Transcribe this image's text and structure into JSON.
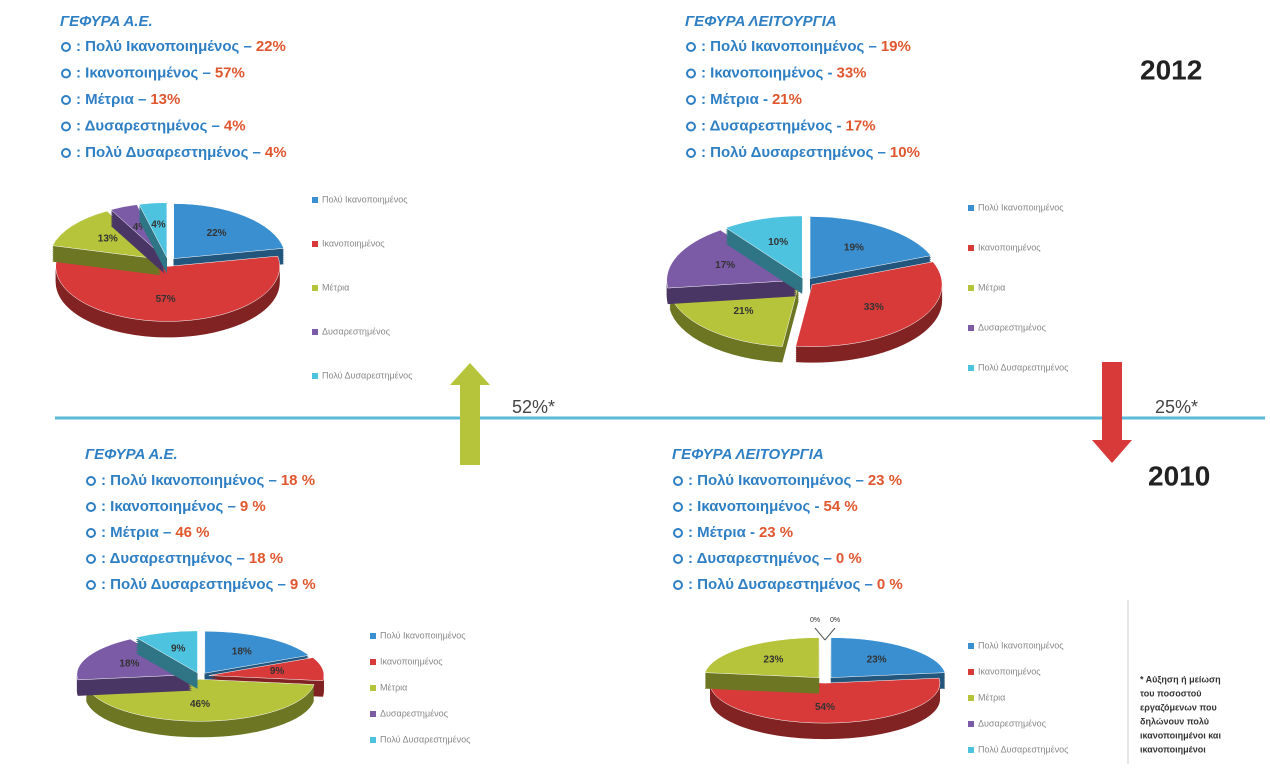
{
  "year_top": "2012",
  "year_bottom": "2010",
  "change_up": "52%*",
  "change_down": "25%*",
  "footnote": [
    "* Αύξηση ή μείωση",
    "του ποσοστού",
    "εργαζόμενων που",
    "δηλώνουν πολύ",
    "ικανοποιημένοι και",
    "ικανοποιημένοι"
  ],
  "chart_data": [
    {
      "type": "pie",
      "title": "ΓΕΦΥΡΑ Α.Ε.",
      "summary": [
        {
          "label": ": Πολύ Ικανοποιημένος –",
          "pct": "22%"
        },
        {
          "label": ": Ικανοποιημένος –",
          "pct": "57%"
        },
        {
          "label": ": Μέτρια –",
          "pct": "13%"
        },
        {
          "label": ": Δυσαρεστημένος –",
          "pct": "4%"
        },
        {
          "label": ": Πολύ Δυσαρεστημένος –",
          "pct": "4%"
        }
      ],
      "categories": [
        "Πολύ Ικανοποιημένος",
        "Ικανοποιημένος",
        "Μέτρια",
        "Δυσαρεστημένος",
        "Πολύ Δυσαρεστημένος"
      ],
      "values": [
        22,
        57,
        13,
        4,
        4
      ],
      "value_labels": [
        "22%",
        "57%",
        "13%",
        "4%",
        "4%"
      ],
      "colors": [
        "#3a8fd0",
        "#d83a3a",
        "#b5c43a",
        "#7b5aa6",
        "#4ec3e0"
      ]
    },
    {
      "type": "pie",
      "title": "ΓΕΦΥΡΑ ΛΕΙΤΟΥΡΓΙΑ",
      "summary": [
        {
          "label": ": Πολύ Ικανοποιημένος –",
          "pct": "19%"
        },
        {
          "label": ": Ικανοποιημένος -",
          "pct": "33%"
        },
        {
          "label": ": Μέτρια -",
          "pct": "21%"
        },
        {
          "label": ": Δυσαρεστημένος -",
          "pct": "17%"
        },
        {
          "label": ": Πολύ Δυσαρεστημένος –",
          "pct": "10%"
        }
      ],
      "categories": [
        "Πολύ Ικανοποιημένος",
        "Ικανοποιημένος",
        "Μέτρια",
        "Δυσαρεστημένος",
        "Πολύ Δυσαρεστημένος"
      ],
      "values": [
        19,
        33,
        21,
        17,
        10
      ],
      "value_labels": [
        "19%",
        "33%",
        "21%",
        "17%",
        "10%"
      ],
      "colors": [
        "#3a8fd0",
        "#d83a3a",
        "#b5c43a",
        "#7b5aa6",
        "#4ec3e0"
      ]
    },
    {
      "type": "pie",
      "title": "ΓΕΦΥΡΑ Α.Ε.",
      "summary": [
        {
          "label": ": Πολύ Ικανοποιημένος –",
          "pct": "18 %"
        },
        {
          "label": ": Ικανοποιημένος –",
          "pct": "9 %"
        },
        {
          "label": ": Μέτρια –",
          "pct": "46 %"
        },
        {
          "label": ": Δυσαρεστημένος –",
          "pct": "18 %"
        },
        {
          "label": ": Πολύ Δυσαρεστημένος –",
          "pct": "9 %"
        }
      ],
      "categories": [
        "Πολύ Ικανοποιημένος",
        "Ικανοποιημένος",
        "Μέτρια",
        "Δυσαρεστημένος",
        "Πολύ Δυσαρεστημένος"
      ],
      "values": [
        18,
        9,
        46,
        18,
        9
      ],
      "value_labels": [
        "18%",
        "9%",
        "46%",
        "18%",
        "9%"
      ],
      "colors": [
        "#3a8fd0",
        "#d83a3a",
        "#b5c43a",
        "#7b5aa6",
        "#4ec3e0"
      ]
    },
    {
      "type": "pie",
      "title": "ΓΕΦΥΡΑ ΛΕΙΤΟΥΡΓΙΑ",
      "summary": [
        {
          "label": ": Πολύ Ικανοποιημένος –",
          "pct": "23 %"
        },
        {
          "label": ": Ικανοποιημένος -",
          "pct": "54 %"
        },
        {
          "label": ": Μέτρια -",
          "pct": "23 %"
        },
        {
          "label": ": Δυσαρεστημένος –",
          "pct": "0 %"
        },
        {
          "label": ": Πολύ Δυσαρεστημένος –",
          "pct": "0 %"
        }
      ],
      "categories": [
        "Πολύ Ικανοποιημένος",
        "Ικανοποιημένος",
        "Μέτρια",
        "Δυσαρεστημένος",
        "Πολύ Δυσαρεστημένος"
      ],
      "values": [
        23,
        54,
        23,
        0,
        0
      ],
      "value_labels": [
        "23%",
        "54%",
        "23%",
        "0%",
        "0%"
      ],
      "colors": [
        "#3a8fd0",
        "#d83a3a",
        "#b5c43a",
        "#7b5aa6",
        "#4ec3e0"
      ]
    }
  ]
}
